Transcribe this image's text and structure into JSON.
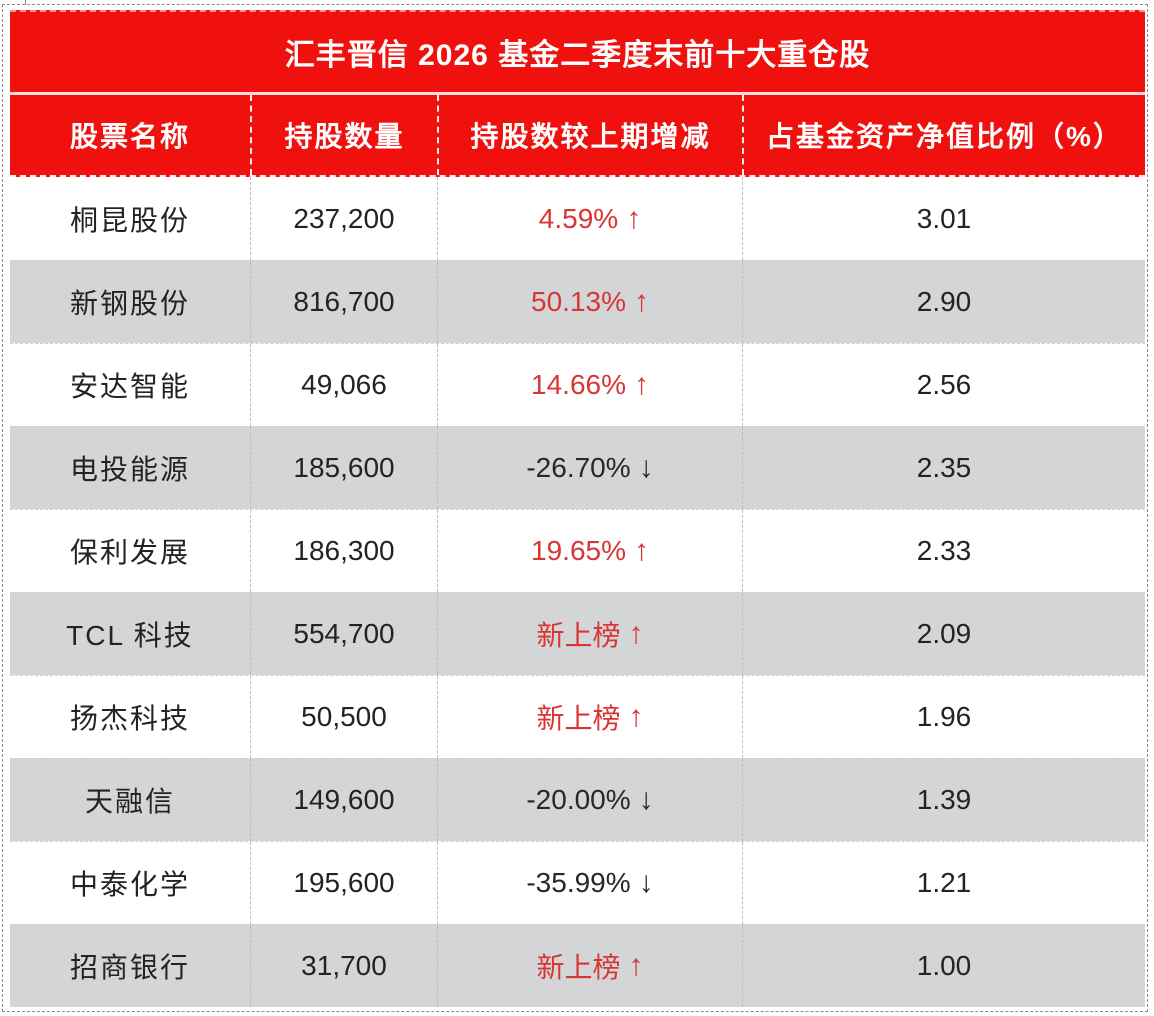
{
  "colors": {
    "header_red": "#f0100e",
    "positive_red": "#d83535",
    "negative_dark": "#282828",
    "row_alt_gray": "#d4d5d6"
  },
  "chart_data": {
    "type": "table",
    "title": "汇丰晋信 2026 基金二季度末前十大重仓股",
    "columns": [
      "股票名称",
      "持股数量",
      "持股数较上期增减",
      "占基金资产净值比例（%）"
    ],
    "rows": [
      {
        "name": "桐昆股份",
        "quantity": "237,200",
        "change": "4.59%",
        "arrow": "↑",
        "trend": "up",
        "ratio": "3.01"
      },
      {
        "name": "新钢股份",
        "quantity": "816,700",
        "change": "50.13%",
        "arrow": "↑",
        "trend": "up",
        "ratio": "2.90"
      },
      {
        "name": "安达智能",
        "quantity": "49,066",
        "change": "14.66%",
        "arrow": "↑",
        "trend": "up",
        "ratio": "2.56"
      },
      {
        "name": "电投能源",
        "quantity": "185,600",
        "change": "-26.70%",
        "arrow": "↓",
        "trend": "down",
        "ratio": "2.35"
      },
      {
        "name": "保利发展",
        "quantity": "186,300",
        "change": "19.65%",
        "arrow": "↑",
        "trend": "up",
        "ratio": "2.33"
      },
      {
        "name": "TCL 科技",
        "quantity": "554,700",
        "change": "新上榜",
        "arrow": "↑",
        "trend": "new",
        "ratio": "2.09"
      },
      {
        "name": "扬杰科技",
        "quantity": "50,500",
        "change": "新上榜",
        "arrow": "↑",
        "trend": "new",
        "ratio": "1.96"
      },
      {
        "name": "天融信",
        "quantity": "149,600",
        "change": "-20.00%",
        "arrow": "↓",
        "trend": "down",
        "ratio": "1.39"
      },
      {
        "name": "中泰化学",
        "quantity": "195,600",
        "change": "-35.99%",
        "arrow": "↓",
        "trend": "down",
        "ratio": "1.21"
      },
      {
        "name": "招商银行",
        "quantity": "31,700",
        "change": "新上榜",
        "arrow": "↑",
        "trend": "new",
        "ratio": "1.00"
      }
    ]
  }
}
